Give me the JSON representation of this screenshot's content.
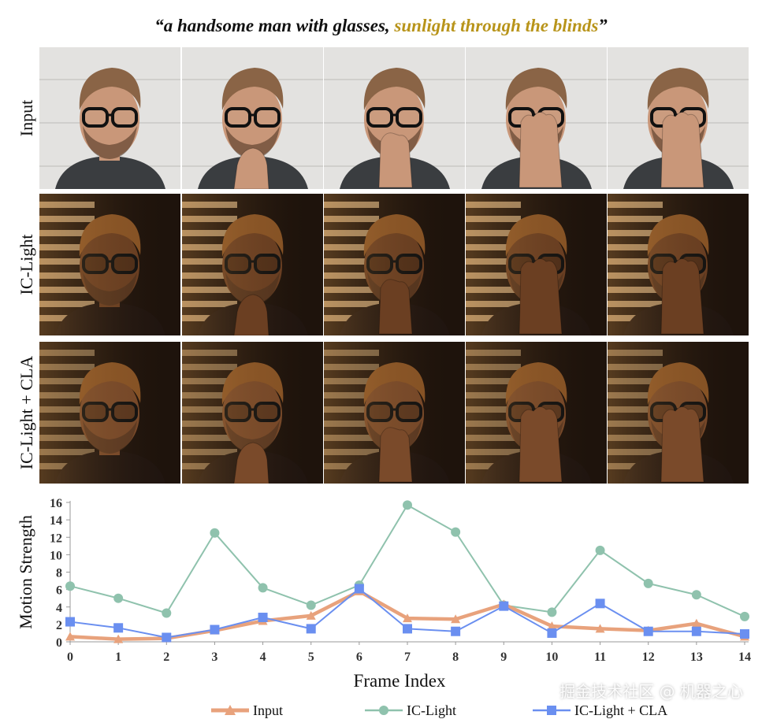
{
  "caption": {
    "part1": "“a  handsome man with glasses,",
    "part2": "sunlight through the blinds",
    "part3": "”"
  },
  "rows": [
    {
      "label": "Input",
      "style": "input"
    },
    {
      "label": "IC-Light",
      "style": "ic"
    },
    {
      "label": "IC-Light + CLA",
      "style": "cla"
    }
  ],
  "frames": [
    {
      "hand": 0
    },
    {
      "hand": 1
    },
    {
      "hand": 2
    },
    {
      "hand": 3
    },
    {
      "hand": 3
    }
  ],
  "chart_data": {
    "type": "line",
    "xlabel": "Frame Index",
    "ylabel": "Motion Strength",
    "x": [
      0,
      1,
      2,
      3,
      4,
      5,
      6,
      7,
      8,
      9,
      10,
      11,
      12,
      13,
      14
    ],
    "ylim": [
      0,
      16
    ],
    "yticks": [
      0,
      2,
      4,
      6,
      8,
      10,
      12,
      14,
      16
    ],
    "grid": false,
    "legend_position": "bottom",
    "series": [
      {
        "name": "Input",
        "color": "#e8a27c",
        "marker": "triangle",
        "values": [
          0.6,
          0.3,
          0.4,
          1.3,
          2.4,
          3.0,
          5.8,
          2.7,
          2.6,
          4.3,
          1.8,
          1.5,
          1.3,
          2.1,
          0.6
        ]
      },
      {
        "name": "IC-Light",
        "color": "#8fc2ad",
        "marker": "circle",
        "values": [
          6.4,
          5.0,
          3.3,
          12.5,
          6.2,
          4.2,
          6.5,
          15.7,
          12.6,
          4.2,
          3.4,
          10.5,
          6.7,
          5.4,
          2.9
        ]
      },
      {
        "name": "IC-Light + CLA",
        "color": "#6a8ff0",
        "marker": "square",
        "values": [
          2.3,
          1.6,
          0.5,
          1.4,
          2.8,
          1.5,
          6.1,
          1.5,
          1.2,
          4.1,
          1.0,
          4.4,
          1.2,
          1.2,
          0.9
        ]
      }
    ]
  },
  "watermark": "掘金技术社区 @ 机器之心"
}
